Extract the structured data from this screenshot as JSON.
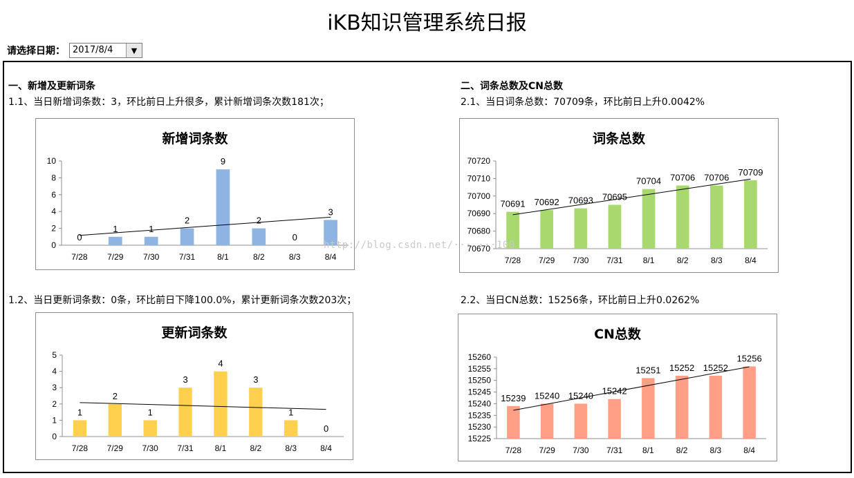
{
  "page_title": "iKB知识管理系统日报",
  "date_picker": {
    "label": "请选择日期：",
    "value": "2017/8/4"
  },
  "section1": {
    "heading": "一、新增及更新词条",
    "stat_new": "1.1、当日新增词条数：3，环比前日上升很多，累计新增词条次数181次；",
    "stat_update": "1.2、当日更新词条数：0条，环比前日下降100.0%，累计更新词条次数203次；"
  },
  "section2": {
    "heading": "二、词条总数及CN总数",
    "stat_total": "2.1、当日词条总数：70709条，环比前日上升0.0042%",
    "stat_cn": "2.2、当日CN总数：15256条，环比前日上升0.0262%"
  },
  "watermark": "http://blog.csdn.net/··· ···100",
  "chart_data": [
    {
      "type": "bar",
      "title": "新增词条数",
      "categories": [
        "7/28",
        "7/29",
        "7/30",
        "7/31",
        "8/1",
        "8/2",
        "8/3",
        "8/4"
      ],
      "values": [
        0,
        1,
        1,
        2,
        9,
        2,
        0,
        3
      ],
      "ylim": [
        0,
        10
      ],
      "yticks": [
        0,
        2,
        4,
        6,
        8,
        10
      ],
      "color": "#8db4e2",
      "trendline": true,
      "grid": false,
      "legend": "none"
    },
    {
      "type": "bar",
      "title": "更新词条数",
      "categories": [
        "7/28",
        "7/29",
        "7/30",
        "7/31",
        "8/1",
        "8/2",
        "8/3",
        "8/4"
      ],
      "values": [
        1,
        2,
        1,
        3,
        4,
        3,
        1,
        0
      ],
      "ylim": [
        0,
        5
      ],
      "yticks": [
        0,
        1,
        2,
        3,
        4,
        5
      ],
      "color": "#ffd04d",
      "trendline": true,
      "grid": false,
      "legend": "none"
    },
    {
      "type": "bar",
      "title": "词条总数",
      "categories": [
        "7/28",
        "7/29",
        "7/30",
        "7/31",
        "8/1",
        "8/2",
        "8/3",
        "8/4"
      ],
      "values": [
        70691,
        70692,
        70693,
        70695,
        70704,
        70706,
        70706,
        70709
      ],
      "ylim": [
        70670,
        70720
      ],
      "yticks": [
        70670,
        70680,
        70690,
        70700,
        70710,
        70720
      ],
      "color": "#a9d86e",
      "trendline": true,
      "grid": false,
      "legend": "none"
    },
    {
      "type": "bar",
      "title": "CN总数",
      "categories": [
        "7/28",
        "7/29",
        "7/30",
        "7/31",
        "8/1",
        "8/2",
        "8/3",
        "8/4"
      ],
      "values": [
        15239,
        15240,
        15240,
        15242,
        15251,
        15252,
        15252,
        15256
      ],
      "ylim": [
        15225,
        15260
      ],
      "yticks": [
        15225,
        15230,
        15235,
        15240,
        15245,
        15250,
        15255,
        15260
      ],
      "color": "#ff9f85",
      "trendline": true,
      "grid": false,
      "legend": "none"
    }
  ]
}
